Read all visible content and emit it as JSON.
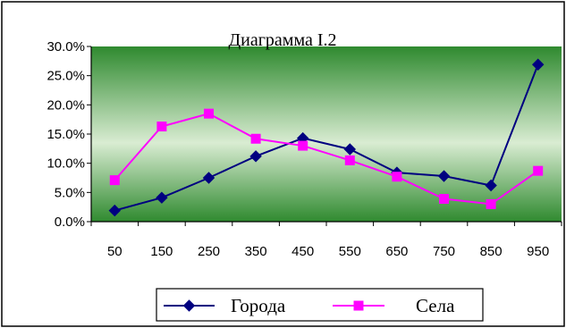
{
  "chart_data": {
    "type": "line",
    "title": "Диаграмма I.2",
    "xlabel": "",
    "ylabel": "",
    "categories": [
      "50",
      "150",
      "250",
      "350",
      "450",
      "550",
      "650",
      "750",
      "850",
      "950"
    ],
    "ylim": [
      0,
      0.3
    ],
    "yticks": [
      0,
      0.05,
      0.1,
      0.15,
      0.2,
      0.25,
      0.3
    ],
    "ytick_labels": [
      "0.0%",
      "5.0%",
      "10.0%",
      "15.0%",
      "20.0%",
      "25.0%",
      "30.0%"
    ],
    "grid": false,
    "legend_position": "bottom",
    "plot_background": "green gradient",
    "series": [
      {
        "name": "Города",
        "color": "#000080",
        "marker": "diamond",
        "values": [
          0.019,
          0.041,
          0.075,
          0.112,
          0.143,
          0.124,
          0.084,
          0.078,
          0.062,
          0.269
        ]
      },
      {
        "name": "Села",
        "color": "#FF00FF",
        "marker": "square",
        "values": [
          0.071,
          0.163,
          0.185,
          0.142,
          0.13,
          0.105,
          0.077,
          0.039,
          0.03,
          0.087
        ]
      }
    ]
  }
}
